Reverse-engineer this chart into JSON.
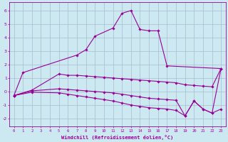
{
  "xlabel": "Windchill (Refroidissement éolien,°C)",
  "bg_color": "#cce8f0",
  "grid_color": "#aabbd0",
  "line_color": "#990099",
  "ylim": [
    -2.6,
    6.6
  ],
  "yticks": [
    -2,
    -1,
    0,
    1,
    2,
    3,
    4,
    5,
    6
  ],
  "xticks": [
    0,
    1,
    2,
    3,
    4,
    5,
    6,
    7,
    8,
    9,
    10,
    11,
    12,
    13,
    14,
    15,
    16,
    17,
    18,
    19,
    20,
    21,
    22,
    23
  ],
  "xlim": [
    -0.5,
    23.5
  ],
  "series": [
    {
      "x": [
        0,
        1,
        7,
        8,
        9,
        11,
        12,
        13,
        14,
        15,
        16,
        17,
        23
      ],
      "y": [
        -0.3,
        1.4,
        2.7,
        3.1,
        4.1,
        4.7,
        5.8,
        6.0,
        4.6,
        4.5,
        4.5,
        1.9,
        1.7
      ]
    },
    {
      "x": [
        0,
        2,
        5,
        6,
        7,
        8,
        9,
        10,
        11,
        12,
        13,
        14,
        15,
        16,
        17,
        18,
        19,
        20,
        21,
        22,
        23
      ],
      "y": [
        -0.3,
        0.1,
        1.3,
        1.2,
        1.2,
        1.15,
        1.1,
        1.05,
        1.0,
        0.95,
        0.9,
        0.85,
        0.8,
        0.75,
        0.7,
        0.65,
        0.5,
        0.45,
        0.4,
        0.35,
        1.7
      ]
    },
    {
      "x": [
        0,
        2,
        5,
        6,
        7,
        8,
        9,
        10,
        11,
        12,
        13,
        14,
        15,
        16,
        17,
        18,
        19,
        20,
        21,
        22,
        23
      ],
      "y": [
        -0.3,
        0.05,
        0.2,
        0.15,
        0.1,
        0.05,
        0.0,
        -0.05,
        -0.1,
        -0.2,
        -0.3,
        -0.4,
        -0.5,
        -0.55,
        -0.6,
        -0.65,
        -1.8,
        -0.7,
        -1.3,
        -1.6,
        1.7
      ]
    },
    {
      "x": [
        0,
        2,
        5,
        6,
        7,
        8,
        9,
        10,
        11,
        12,
        13,
        14,
        15,
        16,
        17,
        18,
        19,
        20,
        21,
        22,
        23
      ],
      "y": [
        -0.3,
        -0.05,
        -0.1,
        -0.2,
        -0.3,
        -0.4,
        -0.5,
        -0.6,
        -0.7,
        -0.85,
        -1.0,
        -1.1,
        -1.2,
        -1.25,
        -1.3,
        -1.4,
        -1.8,
        -0.7,
        -1.3,
        -1.6,
        -1.3
      ]
    }
  ]
}
